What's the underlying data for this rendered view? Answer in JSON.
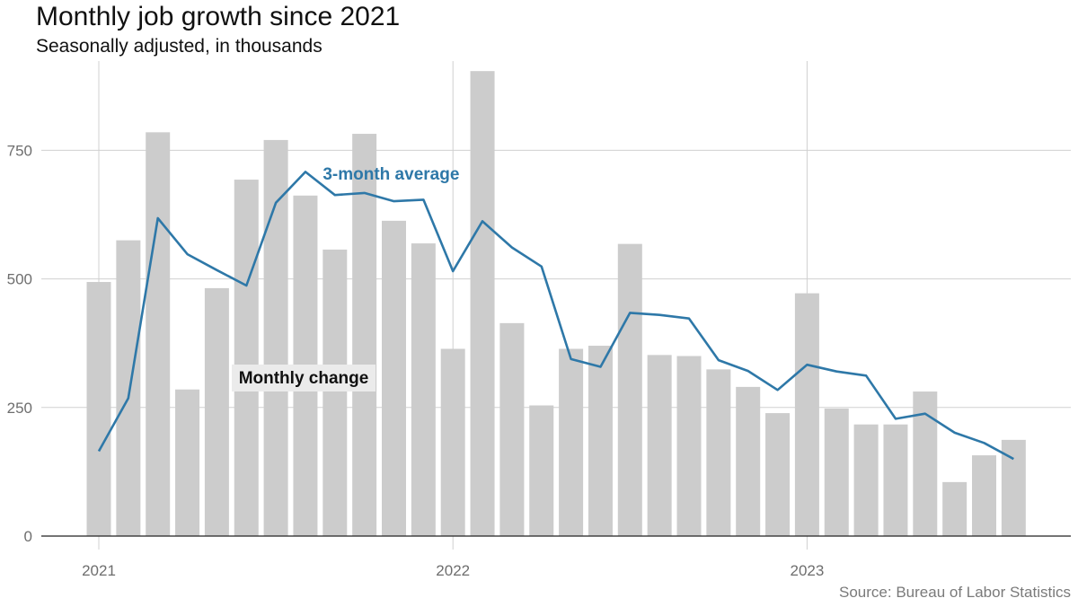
{
  "header": {
    "title": "Monthly job growth since 2021",
    "subtitle": "Seasonally adjusted, in thousands"
  },
  "source": "Source: Bureau of Labor Statistics",
  "colors": {
    "bar": "#cccccc",
    "line": "#2e78a8",
    "grid": "#d0d0d0",
    "axis": "#222222",
    "label_bg": "#ebebeb"
  },
  "chart_data": {
    "type": "bar",
    "title": "Monthly job growth since 2021",
    "subtitle": "Seasonally adjusted, in thousands",
    "xlabel": "",
    "ylabel": "",
    "ylim": [
      0,
      920
    ],
    "yticks": [
      0,
      250,
      500,
      750
    ],
    "ytick_labels": [
      "0",
      "250",
      "500",
      "750"
    ],
    "xtick_labels": [
      "2021",
      "2022",
      "2023"
    ],
    "xtick_month_index": [
      0,
      12,
      24
    ],
    "grid": true,
    "categories": [
      "2021-01",
      "2021-02",
      "2021-03",
      "2021-04",
      "2021-05",
      "2021-06",
      "2021-07",
      "2021-08",
      "2021-09",
      "2021-10",
      "2021-11",
      "2021-12",
      "2022-01",
      "2022-02",
      "2022-03",
      "2022-04",
      "2022-05",
      "2022-06",
      "2022-07",
      "2022-08",
      "2022-09",
      "2022-10",
      "2022-11",
      "2022-12",
      "2023-01",
      "2023-02",
      "2023-03",
      "2023-04",
      "2023-05",
      "2023-06",
      "2023-07",
      "2023-08"
    ],
    "series": [
      {
        "name": "Monthly change",
        "type": "bar",
        "values": [
          494,
          575,
          785,
          285,
          482,
          693,
          770,
          662,
          557,
          782,
          613,
          569,
          364,
          904,
          414,
          254,
          364,
          370,
          568,
          352,
          350,
          324,
          290,
          239,
          472,
          248,
          217,
          217,
          281,
          105,
          157,
          187
        ]
      },
      {
        "name": "3-month average",
        "type": "line",
        "values": [
          165,
          268,
          618,
          548,
          517,
          487,
          648,
          708,
          663,
          667,
          651,
          654,
          515,
          612,
          561,
          524,
          344,
          329,
          434,
          430,
          423,
          342,
          321,
          284,
          333,
          320,
          312,
          228,
          238,
          201,
          181,
          150
        ]
      }
    ],
    "annotations": [
      {
        "text": "3-month average",
        "series": "3-month average",
        "x_index": 11,
        "y": 700
      },
      {
        "text": "Monthly change",
        "series": "Monthly change",
        "x_index": 5.6,
        "y": 302
      }
    ]
  }
}
